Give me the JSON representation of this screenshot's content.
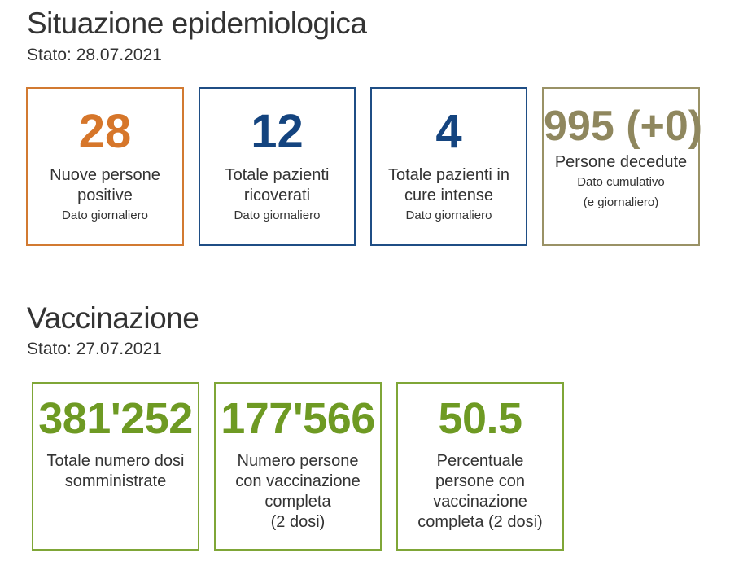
{
  "epidemiology": {
    "title": "Situazione epidemiologica",
    "date": "Stato: 28.07.2021",
    "cards": [
      {
        "value": "28",
        "label_lines": [
          "Nuove persone",
          "positive"
        ],
        "note_lines": [
          "Dato giornaliero"
        ],
        "color": "#d6762a"
      },
      {
        "value": "12",
        "label_lines": [
          "Totale pazienti",
          "ricoverati"
        ],
        "note_lines": [
          "Dato giornaliero"
        ],
        "color": "#14447f"
      },
      {
        "value": "4",
        "label_lines": [
          "Totale pazienti in",
          "cure intense"
        ],
        "note_lines": [
          "Dato giornaliero"
        ],
        "color": "#14447f"
      },
      {
        "value": "995 (+0)",
        "label_lines": [
          "Persone decedute"
        ],
        "note_lines": [
          "Dato cumulativo",
          "(e giornaliero)"
        ],
        "color": "#8f875e"
      }
    ]
  },
  "vaccination": {
    "title": "Vaccinazione",
    "date": "Stato: 27.07.2021",
    "cards": [
      {
        "value": "381'252",
        "label_lines": [
          "Totale numero dosi",
          "somministrate"
        ],
        "color": "#6e9a23"
      },
      {
        "value": "177'566",
        "label_lines": [
          "Numero persone",
          "con vaccinazione",
          "completa",
          "(2 dosi)"
        ],
        "color": "#6e9a23"
      },
      {
        "value": "50.5",
        "label_lines": [
          "Percentuale",
          "persone con",
          "vaccinazione",
          "completa (2 dosi)"
        ],
        "color": "#6e9a23"
      }
    ]
  }
}
